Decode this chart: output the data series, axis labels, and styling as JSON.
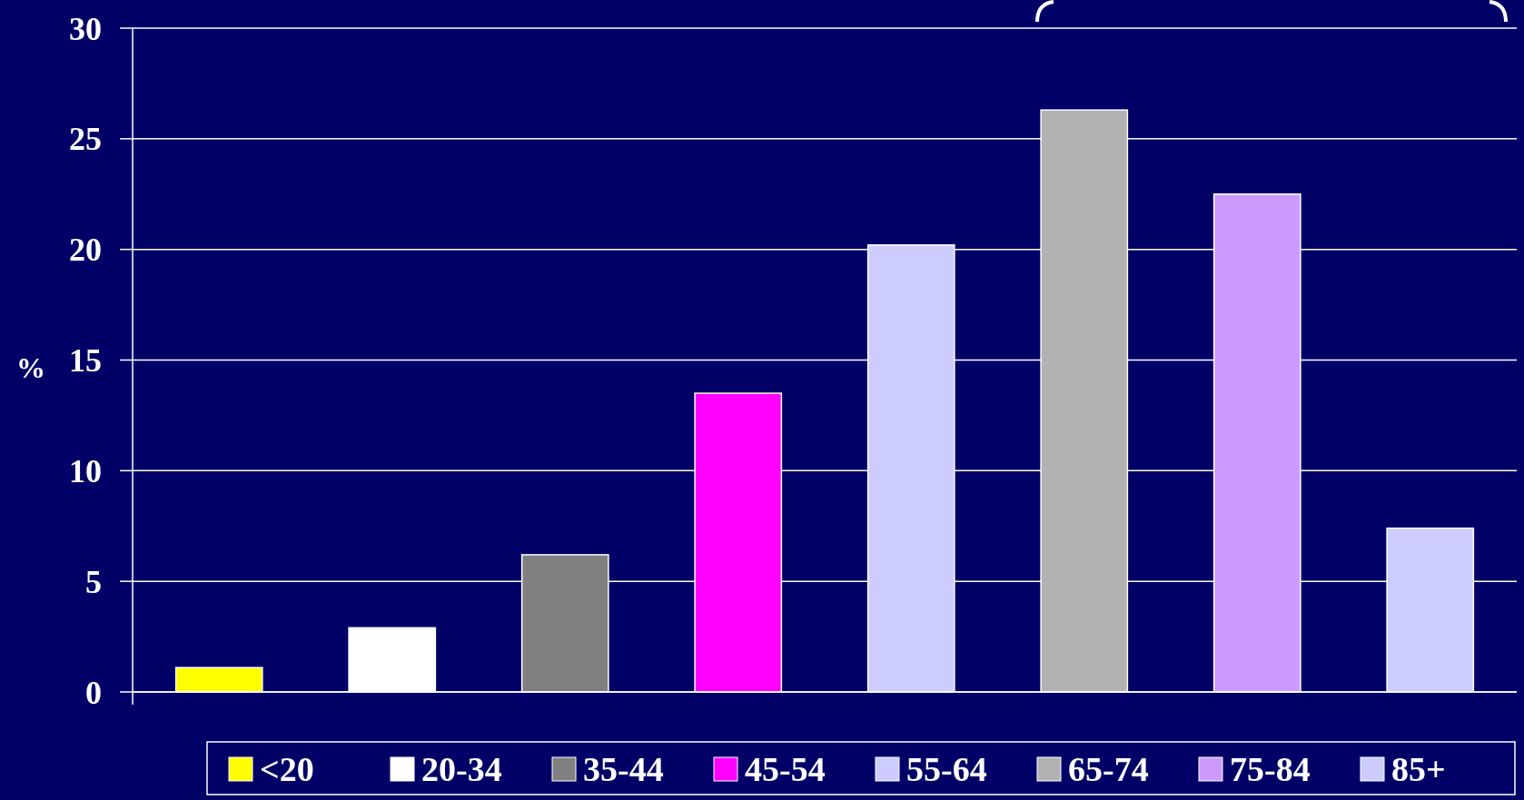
{
  "chart_data": {
    "type": "bar",
    "ylabel": "%",
    "categories": [
      null,
      null,
      null,
      null,
      null,
      null,
      null,
      null
    ],
    "series": [
      {
        "name": "<20",
        "color": "#ffff00",
        "values": [
          1.1,
          null,
          null,
          null,
          null,
          null,
          null,
          null
        ]
      },
      {
        "name": "20-34",
        "color": "#ffffff",
        "values": [
          null,
          2.9,
          null,
          null,
          null,
          null,
          null,
          null
        ]
      },
      {
        "name": "35-44",
        "color": "#808080",
        "values": [
          null,
          null,
          6.2,
          null,
          null,
          null,
          null,
          null
        ]
      },
      {
        "name": "45-54",
        "color": "#ff00ff",
        "values": [
          null,
          null,
          null,
          13.5,
          null,
          null,
          null,
          null
        ]
      },
      {
        "name": "55-64",
        "color": "#ccccff",
        "values": [
          null,
          null,
          null,
          null,
          20.2,
          null,
          null,
          null
        ]
      },
      {
        "name": "65-74",
        "color": "#b2b2b2",
        "values": [
          null,
          null,
          null,
          null,
          null,
          26.3,
          null,
          null
        ]
      },
      {
        "name": "75-84",
        "color": "#cc99ff",
        "values": [
          null,
          null,
          null,
          null,
          null,
          null,
          22.5,
          null
        ]
      },
      {
        "name": "85+",
        "color": "#ccccff",
        "values": [
          null,
          null,
          null,
          null,
          null,
          null,
          null,
          7.4
        ]
      }
    ],
    "ylim": [
      0,
      30
    ],
    "yticks": [
      0,
      5,
      10,
      15,
      20,
      25,
      30
    ],
    "grid": "y",
    "legend": "bottom"
  }
}
